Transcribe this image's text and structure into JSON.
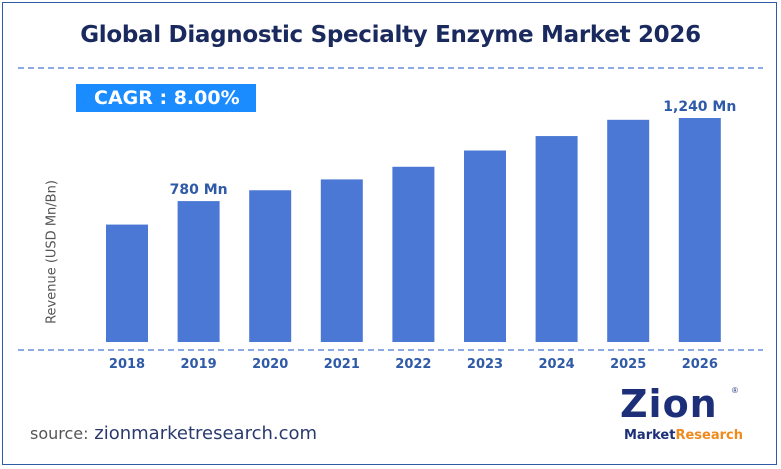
{
  "chart_data": {
    "type": "bar",
    "title": "Global Diagnostic Specialty Enzyme Market 2026",
    "ylabel": "Revenue (USD Mn/Bn)",
    "xlabel": "",
    "categories": [
      "2018",
      "2019",
      "2020",
      "2021",
      "2022",
      "2023",
      "2024",
      "2025",
      "2026"
    ],
    "values": [
      650,
      780,
      840,
      900,
      970,
      1060,
      1140,
      1230,
      1240
    ],
    "data_labels": [
      {
        "category": "2019",
        "text": "780 Mn"
      },
      {
        "category": "2026",
        "text": "1,240 Mn"
      }
    ],
    "grid": false,
    "bar_color": "#4a78d4"
  },
  "cagr_label": "CAGR : 8.00%",
  "source": {
    "label": "source:",
    "url": "zionmarketresearch.com"
  },
  "logo": {
    "name": "Zion",
    "subtitle_a": "Market",
    "subtitle_b": "Research"
  },
  "colors": {
    "title": "#1a2a5e",
    "cagr_bg": "#1a8cff",
    "dashed_line": "#4a78d4",
    "label": "#2f5aa8"
  }
}
